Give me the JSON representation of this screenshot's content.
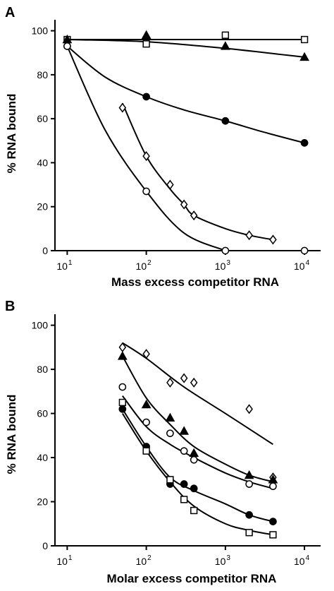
{
  "chart_data": [
    {
      "panel": "A",
      "type": "line",
      "xlabel": "Mass excess competitor RNA",
      "ylabel": "% RNA bound",
      "xscale": "log",
      "xlim": [
        7,
        16000
      ],
      "ylim": [
        0,
        105
      ],
      "x_ticks": [
        10,
        100,
        1000,
        10000
      ],
      "x_tick_labels": [
        [
          "10",
          "1"
        ],
        [
          "10",
          "2"
        ],
        [
          "10",
          "3"
        ],
        [
          "10",
          "4"
        ]
      ],
      "y_ticks": [
        0,
        20,
        40,
        60,
        80,
        100
      ],
      "y_tick_labels": [
        "0",
        "20",
        "40",
        "60",
        "80",
        "100"
      ],
      "series": [
        {
          "marker": "square-open",
          "x": [
            10,
            100,
            1000,
            10000
          ],
          "y": [
            96,
            94,
            98,
            96
          ],
          "fit": [
            [
              10,
              96
            ],
            [
              10000,
              96
            ]
          ]
        },
        {
          "marker": "triangle-filled",
          "x": [
            10,
            100,
            1000,
            10000
          ],
          "y": [
            96,
            98,
            93,
            88
          ],
          "fit": [
            [
              10,
              96
            ],
            [
              100,
              95
            ],
            [
              1000,
              92
            ],
            [
              10000,
              88
            ]
          ]
        },
        {
          "marker": "circle-filled",
          "x": [
            10,
            100,
            1000,
            10000
          ],
          "y": [
            93,
            70,
            59,
            49
          ],
          "fit": [
            [
              10,
              93
            ],
            [
              30,
              79
            ],
            [
              100,
              70
            ],
            [
              300,
              64
            ],
            [
              1000,
              59
            ],
            [
              3000,
              54
            ],
            [
              10000,
              49
            ]
          ]
        },
        {
          "marker": "diamond-open",
          "x": [
            50,
            100,
            200,
            300,
            400,
            2000,
            4000
          ],
          "y": [
            65,
            43,
            30,
            21,
            16,
            7,
            5
          ],
          "fit": [
            [
              50,
              67
            ],
            [
              100,
              43
            ],
            [
              200,
              28
            ],
            [
              300,
              21
            ],
            [
              400,
              16
            ],
            [
              1000,
              10
            ],
            [
              2000,
              7
            ],
            [
              4000,
              5
            ]
          ]
        },
        {
          "marker": "circle-open",
          "x": [
            10,
            100,
            1000,
            10000
          ],
          "y": [
            93,
            27,
            0,
            0
          ],
          "fit": [
            [
              10,
              93
            ],
            [
              30,
              55
            ],
            [
              100,
              27
            ],
            [
              300,
              8
            ],
            [
              1000,
              0
            ]
          ]
        }
      ]
    },
    {
      "panel": "B",
      "type": "line",
      "xlabel": "Molar excess competitor RNA",
      "ylabel": "% RNA bound",
      "xscale": "log",
      "xlim": [
        7,
        16000
      ],
      "ylim": [
        0,
        105
      ],
      "x_ticks": [
        10,
        100,
        1000,
        10000
      ],
      "x_tick_labels": [
        [
          "10",
          "1"
        ],
        [
          "10",
          "2"
        ],
        [
          "10",
          "3"
        ],
        [
          "10",
          "4"
        ]
      ],
      "y_ticks": [
        0,
        20,
        40,
        60,
        80,
        100
      ],
      "y_tick_labels": [
        "0",
        "20",
        "40",
        "60",
        "80",
        "100"
      ],
      "series": [
        {
          "marker": "diamond-open",
          "x": [
            50,
            100,
            200,
            300,
            400,
            2000,
            4000
          ],
          "y": [
            90,
            87,
            74,
            76,
            74,
            62,
            31
          ],
          "fit": [
            [
              50,
              92
            ],
            [
              100,
              85
            ],
            [
              300,
              72
            ],
            [
              1000,
              60
            ],
            [
              4000,
              46
            ]
          ]
        },
        {
          "marker": "triangle-filled",
          "x": [
            50,
            100,
            200,
            300,
            400,
            2000,
            4000
          ],
          "y": [
            86,
            64,
            58,
            52,
            42,
            32,
            30
          ],
          "fit": [
            [
              50,
              86
            ],
            [
              100,
              67
            ],
            [
              200,
              55
            ],
            [
              400,
              45
            ],
            [
              1000,
              37
            ],
            [
              2000,
              32
            ],
            [
              4000,
              29
            ]
          ]
        },
        {
          "marker": "circle-open",
          "x": [
            50,
            100,
            200,
            300,
            400,
            2000,
            4000
          ],
          "y": [
            72,
            56,
            51,
            43,
            39,
            28,
            27
          ],
          "fit": [
            [
              50,
              68
            ],
            [
              100,
              54
            ],
            [
              200,
              46
            ],
            [
              400,
              40
            ],
            [
              1000,
              33
            ],
            [
              2000,
              29
            ],
            [
              4000,
              26
            ]
          ]
        },
        {
          "marker": "circle-filled",
          "x": [
            50,
            100,
            200,
            300,
            400,
            2000,
            4000
          ],
          "y": [
            62,
            45,
            28,
            28,
            26,
            14,
            11
          ],
          "fit": [
            [
              50,
              62
            ],
            [
              100,
              45
            ],
            [
              200,
              31
            ],
            [
              400,
              25
            ],
            [
              1000,
              19
            ],
            [
              2000,
              14
            ],
            [
              4000,
              11
            ]
          ]
        },
        {
          "marker": "square-open",
          "x": [
            50,
            100,
            200,
            300,
            400,
            2000,
            4000
          ],
          "y": [
            65,
            43,
            30,
            21,
            16,
            6,
            5
          ],
          "fit": [
            [
              50,
              60
            ],
            [
              100,
              43
            ],
            [
              200,
              29
            ],
            [
              400,
              18
            ],
            [
              1000,
              10
            ],
            [
              2000,
              7
            ],
            [
              4000,
              5
            ]
          ]
        }
      ]
    }
  ]
}
